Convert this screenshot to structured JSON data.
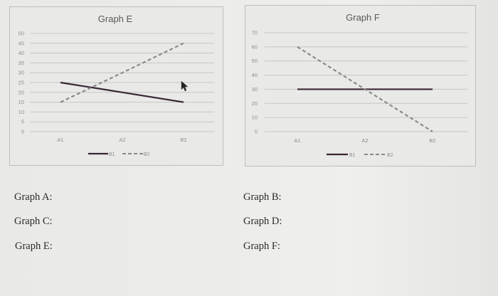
{
  "colors": {
    "background": "#e9e9e7",
    "b1_line": "#3b2633",
    "b2_line": "#8a8a8a",
    "gridline": "#c6c6c4",
    "tick_text": "#8c8c8c",
    "title_text": "#595959"
  },
  "chart_data": [
    {
      "type": "line",
      "title": "Graph E",
      "categories": [
        "A1",
        "A2",
        "B2"
      ],
      "series": [
        {
          "name": "B1",
          "style": "solid",
          "values": [
            25,
            20,
            15
          ]
        },
        {
          "name": "B2",
          "style": "dashed",
          "values": [
            15,
            30,
            45
          ]
        }
      ],
      "yticks": [
        "0",
        "5",
        "10",
        "15",
        "20",
        "25",
        "30",
        "35",
        "40",
        "45",
        "50"
      ],
      "ylim": [
        0,
        50
      ],
      "xlabel": "",
      "ylabel": "",
      "grid": true,
      "legend_position": "bottom"
    },
    {
      "type": "line",
      "title": "Graph F",
      "categories": [
        "A1",
        "A2",
        "B2"
      ],
      "series": [
        {
          "name": "B1",
          "style": "solid",
          "values": [
            30,
            30,
            30
          ]
        },
        {
          "name": "B2",
          "style": "dashed",
          "values": [
            60,
            30,
            0
          ]
        }
      ],
      "yticks": [
        "0",
        "10",
        "20",
        "30",
        "40",
        "50",
        "60",
        "70"
      ],
      "ylim": [
        0,
        70
      ],
      "xlabel": "",
      "ylabel": "",
      "grid": true,
      "legend_position": "bottom"
    }
  ],
  "questions": {
    "left": [
      "Graph A:",
      "Graph C:",
      "Graph E:"
    ],
    "right": [
      "Graph B:",
      "Graph D:",
      "Graph F:"
    ]
  }
}
